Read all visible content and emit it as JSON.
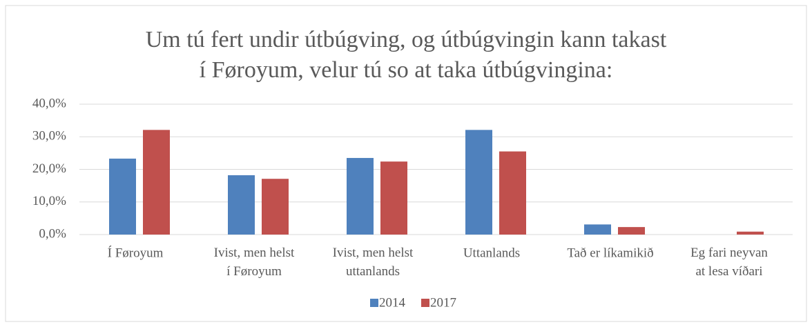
{
  "chart_data": {
    "type": "bar",
    "title": "Um tú fert undir útbúgving, og útbúgvingin kann takast\ní Føroyum, velur tú so at taka útbúgvingina:",
    "categories": [
      "Í Føroyum",
      "Ivist, men helst\ní Føroyum",
      "Ivist, men helst\nuttanlands",
      "Uttanlands",
      "Tað er líkamikið",
      "Eg fari neyvan\nat lesa víðari"
    ],
    "series": [
      {
        "name": "2014",
        "color": "#4f81bd",
        "values": [
          23.3,
          18.2,
          23.5,
          32.1,
          3.1,
          0
        ]
      },
      {
        "name": "2017",
        "color": "#c0504d",
        "values": [
          32.1,
          17.1,
          22.4,
          25.5,
          2.3,
          0.9
        ]
      }
    ],
    "ylim": [
      0,
      40
    ],
    "yticks": [
      {
        "value": 0,
        "label": "0,0%"
      },
      {
        "value": 10,
        "label": "10,0%"
      },
      {
        "value": 20,
        "label": "20,0%"
      },
      {
        "value": 30,
        "label": "30,0%"
      },
      {
        "value": 40,
        "label": "40,0%"
      }
    ],
    "grid": true,
    "legend": "bottom"
  }
}
